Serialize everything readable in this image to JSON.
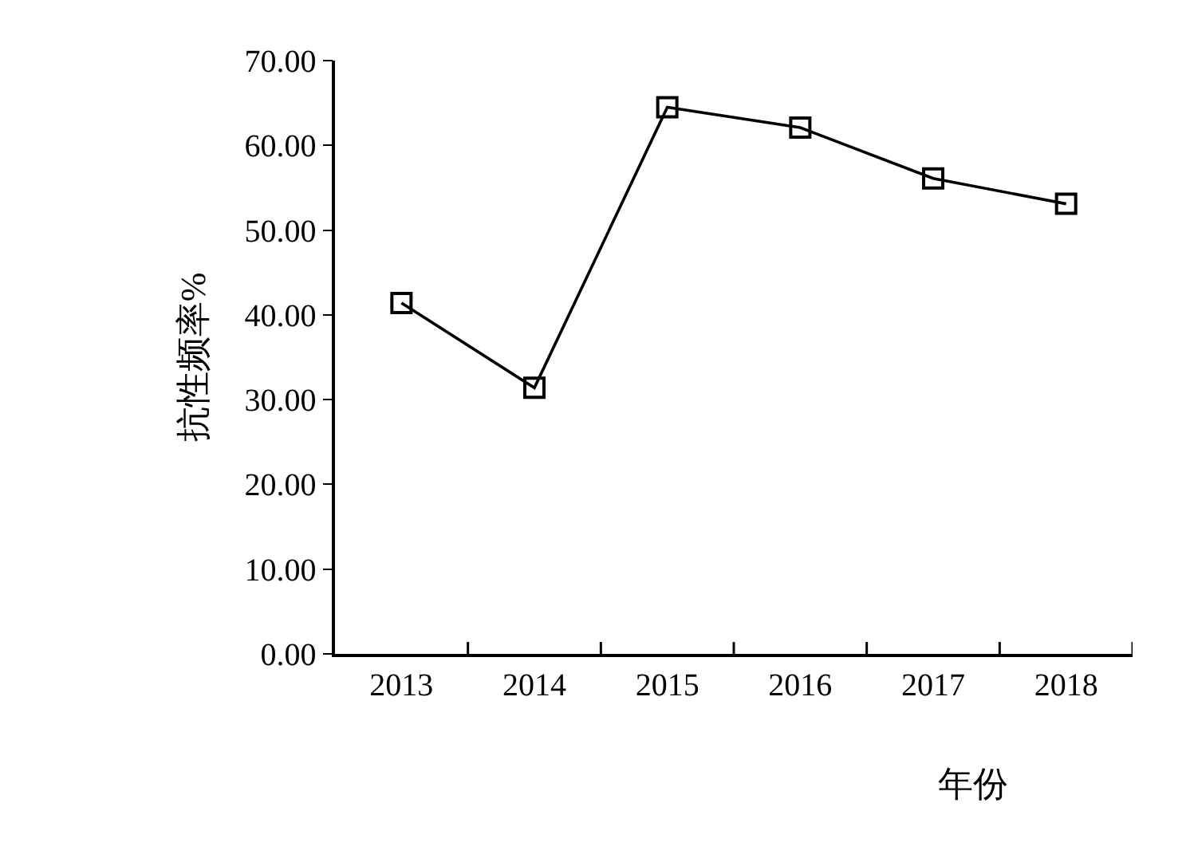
{
  "chart_data": {
    "type": "line",
    "xlabel": "年份",
    "ylabel": "抗性频率%",
    "categories": [
      "2013",
      "2014",
      "2015",
      "2016",
      "2017",
      "2018"
    ],
    "series": [
      {
        "color": "#000000",
        "values": [
          41.4,
          31.4,
          64.5,
          62.1,
          56.1,
          53.1
        ]
      }
    ],
    "ylim": [
      0,
      70
    ],
    "yticks": [
      {
        "value": 0,
        "label": "0.00"
      },
      {
        "value": 10,
        "label": "10.00"
      },
      {
        "value": 20,
        "label": "20.00"
      },
      {
        "value": 30,
        "label": "30.00"
      },
      {
        "value": 40,
        "label": "40.00"
      },
      {
        "value": 50,
        "label": "50.00"
      },
      {
        "value": 60,
        "label": "60.00"
      },
      {
        "value": 70,
        "label": "70.00"
      }
    ],
    "marker": "square",
    "line_style": "solid",
    "legend": false
  }
}
